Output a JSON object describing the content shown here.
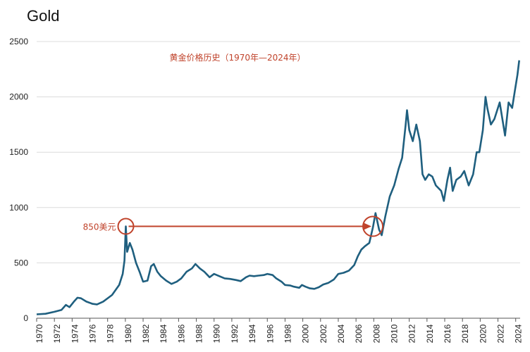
{
  "chart_data": {
    "type": "line",
    "title": "Gold",
    "subtitle": "黄金价格历史（1970年—2024年）",
    "xlim": [
      1970,
      2024.5
    ],
    "ylim": [
      0,
      2500
    ],
    "x_ticks": [
      "1970",
      "1972",
      "1974",
      "1976",
      "1978",
      "1980",
      "1982",
      "1984",
      "1986",
      "1988",
      "1990",
      "1992",
      "1994",
      "1996",
      "1998",
      "2000",
      "2002",
      "2004",
      "2006",
      "2008",
      "2010",
      "2012",
      "2014",
      "2016",
      "2018",
      "2020",
      "2022",
      "2024"
    ],
    "y_ticks": [
      "0",
      "500",
      "1000",
      "1500",
      "2000",
      "2500"
    ],
    "grid": true,
    "series": [
      {
        "color": "#1f5f7f",
        "points": [
          [
            1970,
            35
          ],
          [
            1971,
            40
          ],
          [
            1972,
            58
          ],
          [
            1972.8,
            75
          ],
          [
            1973.3,
            120
          ],
          [
            1973.7,
            100
          ],
          [
            1974.2,
            150
          ],
          [
            1974.6,
            185
          ],
          [
            1975,
            180
          ],
          [
            1975.6,
            150
          ],
          [
            1976.3,
            130
          ],
          [
            1976.8,
            125
          ],
          [
            1977.5,
            150
          ],
          [
            1978.5,
            210
          ],
          [
            1979.3,
            300
          ],
          [
            1979.7,
            400
          ],
          [
            1979.9,
            520
          ],
          [
            1980.05,
            830
          ],
          [
            1980.2,
            600
          ],
          [
            1980.5,
            680
          ],
          [
            1980.8,
            620
          ],
          [
            1981.2,
            500
          ],
          [
            1981.6,
            420
          ],
          [
            1982.0,
            330
          ],
          [
            1982.5,
            340
          ],
          [
            1982.9,
            470
          ],
          [
            1983.2,
            490
          ],
          [
            1983.6,
            420
          ],
          [
            1984.0,
            380
          ],
          [
            1984.6,
            340
          ],
          [
            1985.2,
            310
          ],
          [
            1985.8,
            330
          ],
          [
            1986.3,
            360
          ],
          [
            1986.9,
            420
          ],
          [
            1987.5,
            450
          ],
          [
            1987.9,
            490
          ],
          [
            1988.4,
            450
          ],
          [
            1988.9,
            420
          ],
          [
            1989.5,
            370
          ],
          [
            1990.0,
            400
          ],
          [
            1990.6,
            380
          ],
          [
            1991.2,
            360
          ],
          [
            1991.8,
            355
          ],
          [
            1992.5,
            345
          ],
          [
            1993.0,
            335
          ],
          [
            1993.6,
            370
          ],
          [
            1994.0,
            385
          ],
          [
            1994.5,
            380
          ],
          [
            1995.0,
            385
          ],
          [
            1995.6,
            390
          ],
          [
            1996.0,
            400
          ],
          [
            1996.6,
            390
          ],
          [
            1997.0,
            360
          ],
          [
            1997.6,
            330
          ],
          [
            1998.0,
            300
          ],
          [
            1998.6,
            295
          ],
          [
            1999.0,
            285
          ],
          [
            1999.6,
            275
          ],
          [
            1999.9,
            300
          ],
          [
            2000.3,
            285
          ],
          [
            2000.8,
            270
          ],
          [
            2001.3,
            265
          ],
          [
            2001.8,
            280
          ],
          [
            2002.3,
            305
          ],
          [
            2002.9,
            320
          ],
          [
            2003.5,
            350
          ],
          [
            2004.0,
            400
          ],
          [
            2004.6,
            410
          ],
          [
            2005.2,
            430
          ],
          [
            2005.8,
            480
          ],
          [
            2006.2,
            560
          ],
          [
            2006.6,
            620
          ],
          [
            2007.0,
            650
          ],
          [
            2007.5,
            680
          ],
          [
            2007.9,
            820
          ],
          [
            2008.2,
            950
          ],
          [
            2008.6,
            800
          ],
          [
            2008.9,
            750
          ],
          [
            2009.3,
            920
          ],
          [
            2009.8,
            1100
          ],
          [
            2010.3,
            1200
          ],
          [
            2010.8,
            1350
          ],
          [
            2011.2,
            1450
          ],
          [
            2011.6,
            1750
          ],
          [
            2011.75,
            1880
          ],
          [
            2012.0,
            1700
          ],
          [
            2012.4,
            1600
          ],
          [
            2012.8,
            1750
          ],
          [
            2013.2,
            1600
          ],
          [
            2013.5,
            1300
          ],
          [
            2013.8,
            1250
          ],
          [
            2014.2,
            1300
          ],
          [
            2014.6,
            1280
          ],
          [
            2015.0,
            1200
          ],
          [
            2015.6,
            1150
          ],
          [
            2015.9,
            1060
          ],
          [
            2016.3,
            1250
          ],
          [
            2016.6,
            1360
          ],
          [
            2016.9,
            1150
          ],
          [
            2017.3,
            1250
          ],
          [
            2017.8,
            1280
          ],
          [
            2018.2,
            1330
          ],
          [
            2018.7,
            1200
          ],
          [
            2019.2,
            1300
          ],
          [
            2019.6,
            1500
          ],
          [
            2019.9,
            1500
          ],
          [
            2020.3,
            1700
          ],
          [
            2020.6,
            2000
          ],
          [
            2020.8,
            1900
          ],
          [
            2021.2,
            1750
          ],
          [
            2021.6,
            1800
          ],
          [
            2022.2,
            1950
          ],
          [
            2022.5,
            1800
          ],
          [
            2022.8,
            1650
          ],
          [
            2023.2,
            1950
          ],
          [
            2023.6,
            1900
          ],
          [
            2023.9,
            2050
          ],
          [
            2024.2,
            2200
          ],
          [
            2024.4,
            2330
          ]
        ]
      }
    ],
    "annotations": {
      "peak_label": "850美元",
      "arrow_from": [
        1980.05,
        830
      ],
      "arrow_to": [
        2007.9,
        830
      ]
    }
  }
}
